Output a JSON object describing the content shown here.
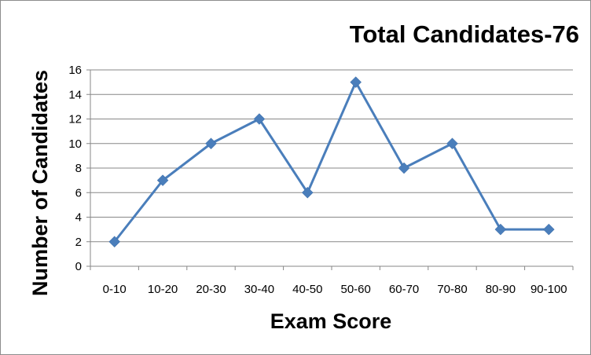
{
  "chart_data": {
    "type": "line",
    "title": "Total Candidates-76",
    "xlabel": "Exam Score",
    "ylabel": "Number of Candidates",
    "categories": [
      "0-10",
      "10-20",
      "20-30",
      "30-40",
      "40-50",
      "50-60",
      "60-70",
      "70-80",
      "80-90",
      "90-100"
    ],
    "series": [
      {
        "values": [
          2,
          7,
          10,
          12,
          6,
          15,
          8,
          10,
          3,
          3
        ],
        "color": "#4a7ebb",
        "marker": "diamond"
      }
    ],
    "ylim": [
      0,
      16
    ],
    "ytick_step": 2,
    "grid": true,
    "legend": "none"
  }
}
